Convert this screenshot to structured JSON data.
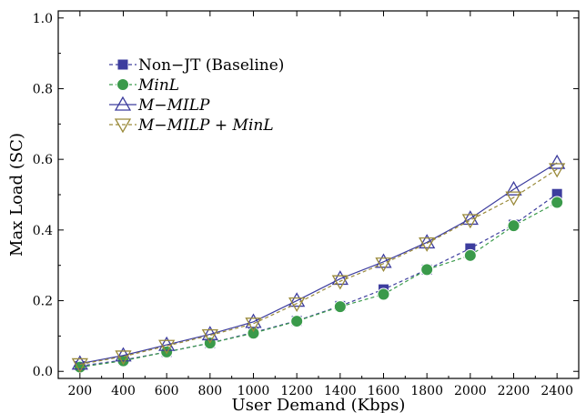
{
  "chart_data": {
    "type": "line",
    "xlabel": "User Demand (Kbps)",
    "ylabel": "Max Load (SC)",
    "x": [
      200,
      400,
      600,
      800,
      1000,
      1200,
      1400,
      1600,
      1800,
      2000,
      2200,
      2400
    ],
    "xlim": [
      100,
      2500
    ],
    "ylim": [
      -0.02,
      1.02
    ],
    "xticks": [
      "200",
      "400",
      "600",
      "800",
      "1000",
      "1200",
      "1400",
      "1600",
      "1800",
      "2000",
      "2200",
      "2400"
    ],
    "yticks": [
      "0.0",
      "0.2",
      "0.4",
      "0.6",
      "0.8",
      "1.0"
    ],
    "ytick_values": [
      0.0,
      0.2,
      0.4,
      0.6,
      0.8,
      1.0
    ],
    "grid": false,
    "legend_position": "top-left",
    "series": [
      {
        "name": "Non−JT (Baseline)",
        "marker": "square",
        "line": "dashed",
        "color": "#3d3d9e",
        "values": [
          0.015,
          0.032,
          0.055,
          0.08,
          0.11,
          0.143,
          0.185,
          0.232,
          0.288,
          0.348,
          0.415,
          0.502
        ]
      },
      {
        "name": "MinL",
        "marker": "circle",
        "line": "dashed",
        "color": "#3a9a4a",
        "values": [
          0.012,
          0.03,
          0.055,
          0.08,
          0.108,
          0.142,
          0.183,
          0.218,
          0.288,
          0.328,
          0.412,
          0.478
        ]
      },
      {
        "name": "M−MILP",
        "marker": "triangle-up",
        "line": "solid",
        "color": "#3d3d9e",
        "values": [
          0.022,
          0.045,
          0.075,
          0.105,
          0.14,
          0.2,
          0.262,
          0.31,
          0.365,
          0.432,
          0.515,
          0.59
        ]
      },
      {
        "name": "M−MILP + MinL",
        "marker": "triangle-down",
        "line": "dashed",
        "color": "#9a8a3a",
        "values": [
          0.02,
          0.042,
          0.072,
          0.102,
          0.135,
          0.192,
          0.255,
          0.305,
          0.362,
          0.428,
          0.492,
          0.572
        ]
      }
    ]
  }
}
